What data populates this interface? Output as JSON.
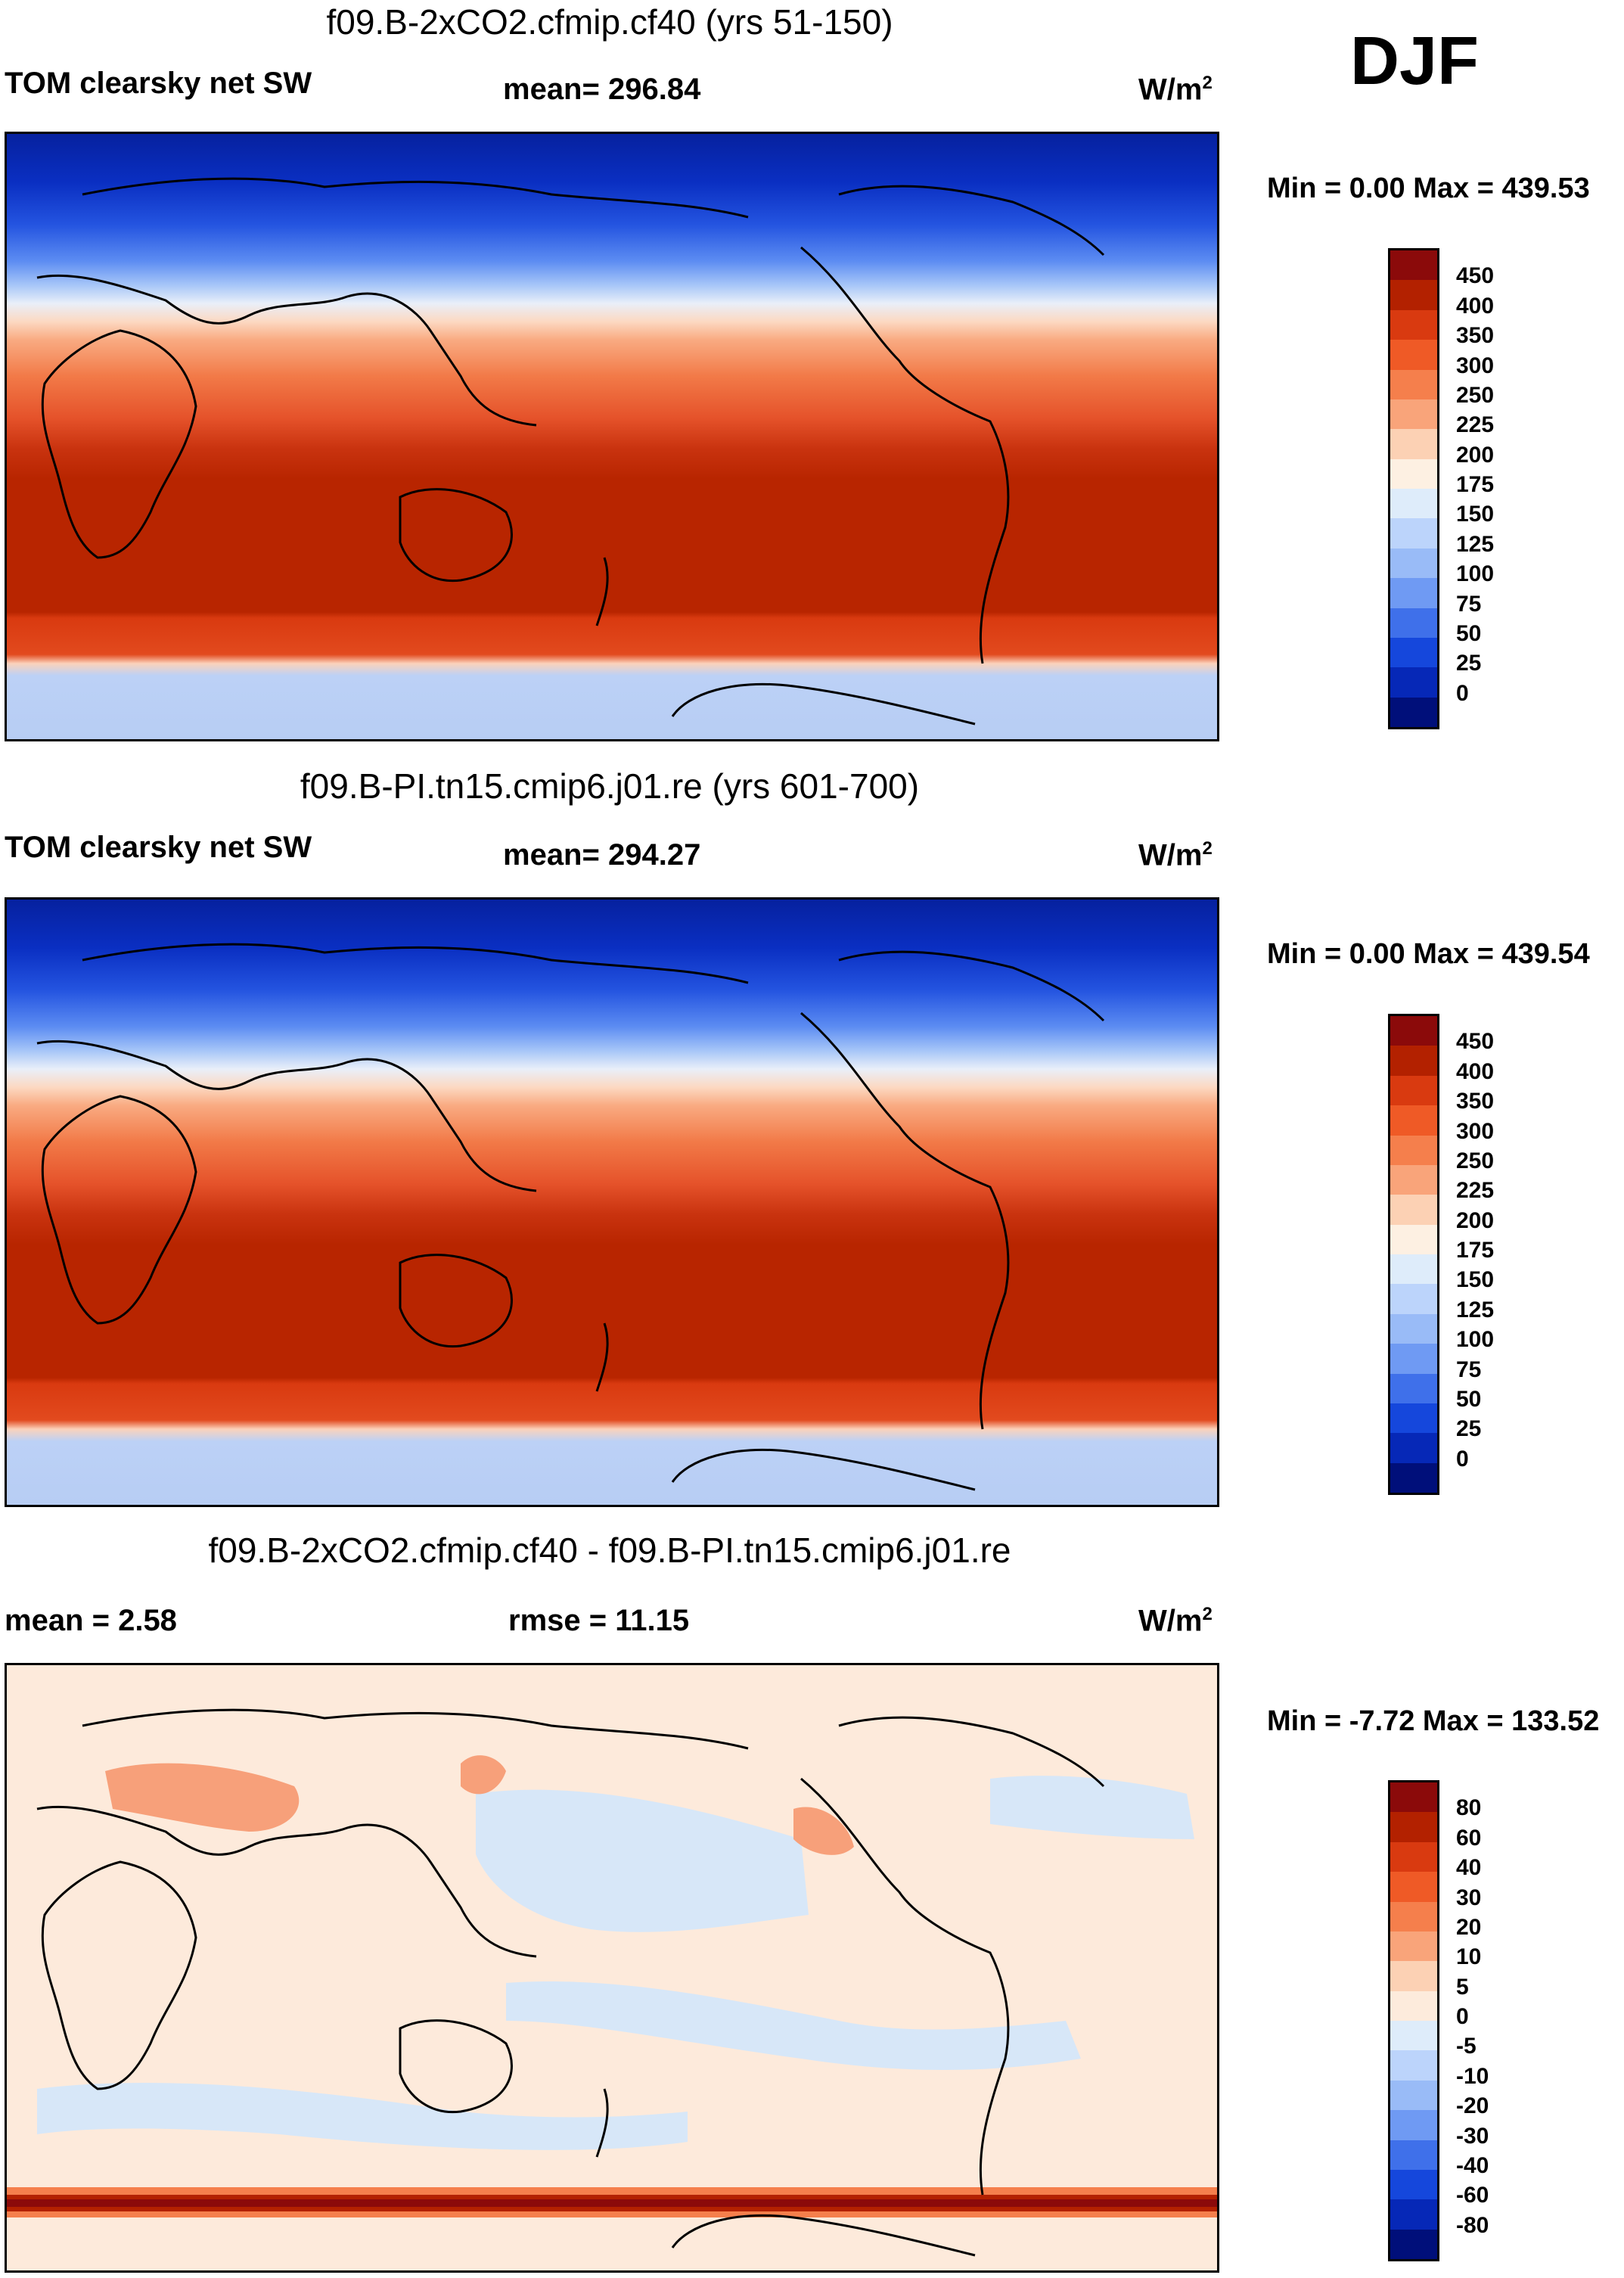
{
  "season": "DJF",
  "panels": [
    {
      "title": "f09.B-2xCO2.cfmip.cf40 (yrs 51-150)",
      "left_label": "TOM clearsky net SW",
      "center_label": "mean= 296.84",
      "units": "W/m",
      "units_sup": "2",
      "minmax": "Min =   0.00 Max = 439.53",
      "colorbar": {
        "ticks": [
          "450",
          "400",
          "350",
          "300",
          "250",
          "225",
          "200",
          "175",
          "150",
          "125",
          "100",
          "75",
          "50",
          "25",
          "0"
        ],
        "colors": [
          "#8b0a0a",
          "#b32100",
          "#d93a10",
          "#ef5a26",
          "#f57f4c",
          "#f9a47a",
          "#fcd1b4",
          "#fdf0e2",
          "#deecfa",
          "#bcd4fb",
          "#99bbf7",
          "#6f9af3",
          "#3f70ea",
          "#1547dc",
          "#0628b7",
          "#000f7a"
        ]
      }
    },
    {
      "title": "f09.B-PI.tn15.cmip6.j01.re (yrs 601-700)",
      "left_label": "TOM clearsky net SW",
      "center_label": "mean= 294.27",
      "units": "W/m",
      "units_sup": "2",
      "minmax": "Min =   0.00 Max = 439.54",
      "colorbar": {
        "ticks": [
          "450",
          "400",
          "350",
          "300",
          "250",
          "225",
          "200",
          "175",
          "150",
          "125",
          "100",
          "75",
          "50",
          "25",
          "0"
        ],
        "colors": [
          "#8b0a0a",
          "#b32100",
          "#d93a10",
          "#ef5a26",
          "#f57f4c",
          "#f9a47a",
          "#fcd1b4",
          "#fdf0e2",
          "#deecfa",
          "#bcd4fb",
          "#99bbf7",
          "#6f9af3",
          "#3f70ea",
          "#1547dc",
          "#0628b7",
          "#000f7a"
        ]
      }
    },
    {
      "title": "f09.B-2xCO2.cfmip.cf40 - f09.B-PI.tn15.cmip6.j01.re",
      "left_label": "mean =   2.58",
      "center_label": "rmse =  11.15",
      "units": "W/m",
      "units_sup": "2",
      "minmax": "Min =  -7.72 Max = 133.52",
      "colorbar": {
        "ticks": [
          "80",
          "60",
          "40",
          "30",
          "20",
          "10",
          "5",
          "0",
          "-5",
          "-10",
          "-20",
          "-30",
          "-40",
          "-60",
          "-80"
        ],
        "colors": [
          "#8b0a0a",
          "#b32100",
          "#d93a10",
          "#ef5a26",
          "#f57f4c",
          "#f9a47a",
          "#fcd1b4",
          "#fdebdc",
          "#deecfa",
          "#bcd4fb",
          "#99bbf7",
          "#6f9af3",
          "#3f70ea",
          "#1547dc",
          "#0628b7",
          "#000f7a"
        ]
      }
    }
  ]
}
